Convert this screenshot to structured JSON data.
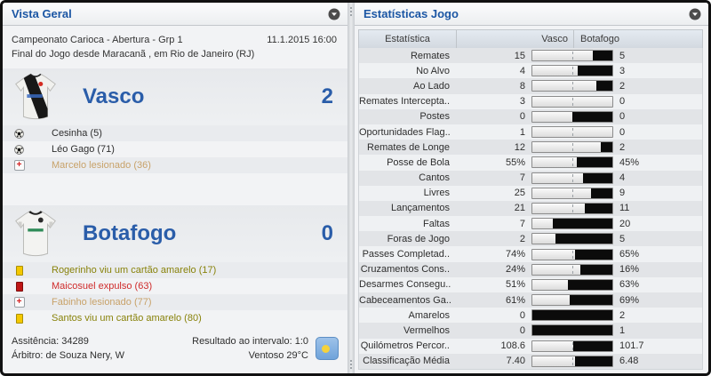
{
  "left_panel": {
    "title": "Vista Geral",
    "competition": "Campeonato Carioca - Abertura - Grp 1",
    "datetime": "11.1.2015 16:00",
    "venue_line": "Final do Jogo desde Maracanã , em Rio de Janeiro (RJ)",
    "home_team": {
      "name": "Vasco",
      "score": "2",
      "events": [
        {
          "icon": "football",
          "type": "goal",
          "text": "Cesinha (5)"
        },
        {
          "icon": "football",
          "type": "goal",
          "text": "Léo Gago (71)"
        },
        {
          "icon": "injury",
          "type": "injury",
          "text": "Marcelo lesionado (36)"
        }
      ]
    },
    "away_team": {
      "name": "Botafogo",
      "score": "0",
      "events": [
        {
          "icon": "yellow-card",
          "type": "yellow",
          "text": "Rogerinho viu um cartão amarelo (17)"
        },
        {
          "icon": "red-card",
          "type": "red",
          "text": "Maicosuel expulso (63)"
        },
        {
          "icon": "injury",
          "type": "injury",
          "text": "Fabinho lesionado (77)"
        },
        {
          "icon": "yellow-card",
          "type": "yellow",
          "text": "Santos viu um cartão amarelo (80)"
        }
      ]
    },
    "footer": {
      "attendance": "Assitência: 34289",
      "referee": "Árbitro: de Souza Nery, W",
      "half_time": "Resultado ao intervalo: 1:0",
      "weather": "Ventoso 29°C",
      "weather_icon": "sun-icon"
    }
  },
  "right_panel": {
    "title": "Estatísticas Jogo",
    "table": {
      "headers": {
        "stat": "Estatística",
        "home": "Vasco",
        "away": "Botafogo"
      },
      "rows": [
        {
          "label": "Remates",
          "home": "15",
          "away": "5"
        },
        {
          "label": "No Alvo",
          "home": "4",
          "away": "3"
        },
        {
          "label": "Ao Lado",
          "home": "8",
          "away": "2"
        },
        {
          "label": "Remates Intercepta..",
          "home": "3",
          "away": "0"
        },
        {
          "label": "Postes",
          "home": "0",
          "away": "0"
        },
        {
          "label": "Oportunidades Flag..",
          "home": "1",
          "away": "0"
        },
        {
          "label": "Remates de Longe",
          "home": "12",
          "away": "2"
        },
        {
          "label": "Posse de Bola",
          "home": "55%",
          "away": "45%"
        },
        {
          "label": "Cantos",
          "home": "7",
          "away": "4"
        },
        {
          "label": "Livres",
          "home": "25",
          "away": "9"
        },
        {
          "label": "Lançamentos",
          "home": "21",
          "away": "11"
        },
        {
          "label": "Faltas",
          "home": "7",
          "away": "20"
        },
        {
          "label": "Foras de Jogo",
          "home": "2",
          "away": "5"
        },
        {
          "label": "Passes Completad..",
          "home": "74%",
          "away": "65%"
        },
        {
          "label": "Cruzamentos Cons..",
          "home": "24%",
          "away": "16%"
        },
        {
          "label": "Desarmes Consegu..",
          "home": "51%",
          "away": "63%"
        },
        {
          "label": "Cabeceamentos Ga..",
          "home": "61%",
          "away": "69%"
        },
        {
          "label": "Amarelos",
          "home": "0",
          "away": "2"
        },
        {
          "label": "Vermelhos",
          "home": "0",
          "away": "1"
        },
        {
          "label": "Quilómetros Percor..",
          "home": "108.6",
          "away": "101.7"
        },
        {
          "label": "Classificação Média",
          "home": "7.40",
          "away": "6.48"
        }
      ]
    }
  },
  "colors": {
    "accent_blue": "#1b56a4",
    "team_blue": "#2a5da9",
    "yellow_card": "#f4c800",
    "red_card": "#bf1515",
    "injury_text": "#c8a269",
    "yellow_text": "#88820a",
    "red_text": "#cf2b2b",
    "bar_fill": "#0b0b0b",
    "row_stripe_dark": "#e2e4e7",
    "row_stripe_light": "#eff1f3"
  }
}
